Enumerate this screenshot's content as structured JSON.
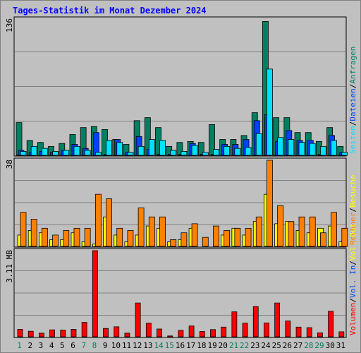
{
  "chart_data": [
    {
      "type": "bar",
      "title": "Tages-Statistik im Monat Dezember 2024",
      "ylabel_top": "136",
      "ylim": [
        0,
        136
      ],
      "legend": [
        "Anfragen",
        "Dateien",
        "Seiten"
      ],
      "colors": {
        "anfragen": "#008060",
        "dateien": "#0040ff",
        "seiten": "#00e0ff"
      },
      "categories": [
        "1",
        "2",
        "3",
        "4",
        "5",
        "6",
        "7",
        "8",
        "9",
        "10",
        "11",
        "12",
        "13",
        "14",
        "15",
        "16",
        "17",
        "18",
        "19",
        "20",
        "21",
        "22",
        "23",
        "24",
        "25",
        "26",
        "27",
        "28",
        "29",
        "30",
        "31"
      ],
      "weekend_days": [
        "1",
        "7",
        "8",
        "14",
        "15",
        "21",
        "22",
        "28",
        "29"
      ],
      "series": [
        {
          "name": "Anfragen",
          "values": [
            33,
            15,
            13,
            9,
            12,
            21,
            28,
            29,
            26,
            16,
            11,
            35,
            38,
            28,
            9,
            13,
            14,
            13,
            31,
            16,
            16,
            20,
            43,
            135,
            38,
            38,
            23,
            23,
            14,
            28,
            9
          ]
        },
        {
          "name": "Dateien",
          "values": [
            5,
            3,
            4,
            3,
            5,
            11,
            7,
            23,
            1,
            16,
            3,
            19,
            6,
            1,
            1,
            1,
            12,
            1,
            1,
            11,
            11,
            16,
            35,
            41,
            14,
            25,
            15,
            15,
            1,
            20,
            3
          ]
        },
        {
          "name": "Seiten",
          "values": [
            4,
            9,
            7,
            4,
            5,
            9,
            5,
            3,
            15,
            13,
            3,
            9,
            16,
            15,
            5,
            4,
            10,
            3,
            6,
            9,
            7,
            8,
            22,
            87,
            18,
            16,
            13,
            12,
            9,
            15,
            3
          ]
        }
      ]
    },
    {
      "type": "bar",
      "ylabel_top": "38",
      "ylim": [
        0,
        38
      ],
      "legend": [
        "Besuche",
        "Rechner"
      ],
      "colors": {
        "besuche": "#ffff00",
        "rechner": "#ff8000"
      },
      "categories": [
        "1",
        "2",
        "3",
        "4",
        "5",
        "6",
        "7",
        "8",
        "9",
        "10",
        "11",
        "12",
        "13",
        "14",
        "15",
        "16",
        "17",
        "18",
        "19",
        "20",
        "21",
        "22",
        "23",
        "24",
        "25",
        "26",
        "27",
        "28",
        "29",
        "30",
        "31"
      ],
      "series": [
        {
          "name": "Besuche",
          "values": [
            5,
            7,
            6,
            3,
            3,
            6,
            2,
            1,
            13,
            5,
            2,
            5,
            9,
            8,
            2,
            3,
            8,
            0,
            0,
            5,
            8,
            5,
            11,
            23,
            10,
            11,
            7,
            6,
            8,
            9,
            2
          ]
        },
        {
          "name": "Rechner",
          "values": [
            15,
            12,
            8,
            5,
            7,
            8,
            8,
            23,
            21,
            8,
            7,
            17,
            13,
            13,
            3,
            6,
            10,
            4,
            9,
            7,
            8,
            8,
            13,
            38,
            18,
            11,
            13,
            13,
            6,
            15,
            8
          ]
        }
      ]
    },
    {
      "type": "bar",
      "ylabel_top": "3.11 MB",
      "ylim": [
        0,
        3.11
      ],
      "legend": [
        "Volumen",
        "Vol. In",
        "Vol. Out"
      ],
      "colors": {
        "volumen": "#ff0000",
        "vol_in": "#0040ff",
        "vol_out": "#ffff00"
      },
      "categories": [
        "1",
        "2",
        "3",
        "4",
        "5",
        "6",
        "7",
        "8",
        "9",
        "10",
        "11",
        "12",
        "13",
        "14",
        "15",
        "16",
        "17",
        "18",
        "19",
        "20",
        "21",
        "22",
        "23",
        "24",
        "25",
        "26",
        "27",
        "28",
        "29",
        "30",
        "31"
      ],
      "series": [
        {
          "name": "Volumen",
          "values": [
            0.27,
            0.2,
            0.13,
            0.25,
            0.24,
            0.27,
            0.52,
            3.11,
            0.3,
            0.36,
            0.13,
            1.22,
            0.49,
            0.28,
            0.03,
            0.23,
            0.39,
            0.19,
            0.26,
            0.35,
            0.9,
            0.49,
            1.09,
            0.5,
            1.22,
            0.57,
            0.35,
            0.33,
            0.14,
            0.92,
            0.18
          ]
        }
      ]
    }
  ]
}
